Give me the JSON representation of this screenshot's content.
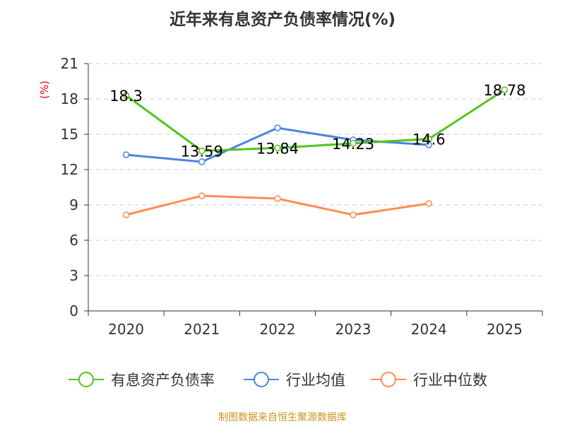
{
  "chart_data": {
    "type": "line",
    "title": "近年来有息资产负债率情况(%)",
    "ylabel": "(%)",
    "categories": [
      "2020",
      "2021",
      "2022",
      "2023",
      "2024",
      "2025"
    ],
    "ylim": [
      0,
      21
    ],
    "yticks": [
      0,
      3,
      6,
      9,
      12,
      15,
      18,
      21
    ],
    "grid": true,
    "legend_position": "bottom",
    "series": [
      {
        "name": "有息资产负债率",
        "color": "#52c41a",
        "values": [
          18.3,
          13.59,
          13.84,
          14.23,
          14.6,
          18.78
        ],
        "labels": [
          "18.3",
          "13.59",
          "13.84",
          "14.23",
          "14.6",
          "18.78"
        ]
      },
      {
        "name": "行业均值",
        "color": "#4a84e0",
        "values": [
          13.26,
          12.66,
          15.54,
          14.52,
          14.1,
          null
        ]
      },
      {
        "name": "行业中位数",
        "color": "#ff8c55",
        "values": [
          8.16,
          9.78,
          9.54,
          8.16,
          9.12,
          null
        ]
      }
    ]
  },
  "source": "制图数据来自恒生聚源数据库"
}
